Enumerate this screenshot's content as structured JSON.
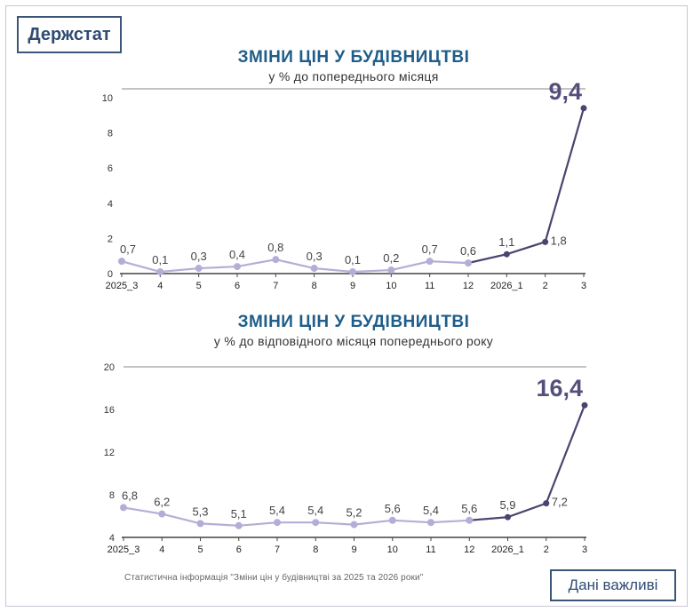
{
  "logo": "Держстат",
  "badge": "Дані важливі",
  "footnote": "Статистична інформація \"Зміни цін у будівництві за 2025 та 2026 роки\"",
  "colors": {
    "light_series": "#b4aed6",
    "dark_series": "#4a4470",
    "title": "#1f5d8a",
    "frame": "#3b5578"
  },
  "chart_data": [
    {
      "type": "line",
      "title": "ЗМІНИ ЦІН У БУДІВНИЦТВІ",
      "subtitle": "у % до попереднього місяця",
      "categories": [
        "2025_3",
        "4",
        "5",
        "6",
        "7",
        "8",
        "9",
        "10",
        "11",
        "12",
        "2026_1",
        "2",
        "3"
      ],
      "values": [
        0.7,
        0.1,
        0.3,
        0.4,
        0.8,
        0.3,
        0.1,
        0.2,
        0.7,
        0.6,
        1.1,
        1.8,
        9.4
      ],
      "labels": [
        "0,7",
        "0,1",
        "0,3",
        "0,4",
        "0,8",
        "0,3",
        "0,1",
        "0,2",
        "0,7",
        "0,6",
        "1,1",
        "1,8",
        "9,4"
      ],
      "yticks": [
        0,
        2,
        4,
        6,
        8,
        10
      ],
      "ylim": [
        0,
        10.5
      ],
      "highlight_from_index": 10,
      "grid": "top line only"
    },
    {
      "type": "line",
      "title": "ЗМІНИ ЦІН У БУДІВНИЦТВІ",
      "subtitle": "у % до відповідного місяця попереднього року",
      "categories": [
        "2025_3",
        "4",
        "5",
        "6",
        "7",
        "8",
        "9",
        "10",
        "11",
        "12",
        "2026_1",
        "2",
        "3"
      ],
      "values": [
        6.8,
        6.2,
        5.3,
        5.1,
        5.4,
        5.4,
        5.2,
        5.6,
        5.4,
        5.6,
        5.9,
        7.2,
        16.4
      ],
      "labels": [
        "6,8",
        "6,2",
        "5,3",
        "5,1",
        "5,4",
        "5,4",
        "5,2",
        "5,6",
        "5,4",
        "5,6",
        "5,9",
        "7,2",
        "16,4"
      ],
      "yticks": [
        4,
        8,
        12,
        16,
        20
      ],
      "ylim": [
        4,
        20
      ],
      "highlight_from_index": 10,
      "grid": "top line only"
    }
  ]
}
